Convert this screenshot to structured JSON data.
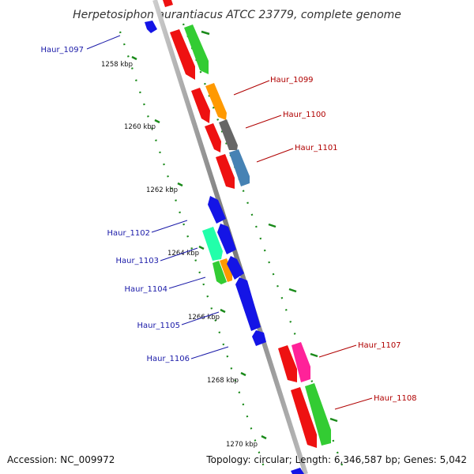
{
  "title": "Herpetosiphon aurantiacus ATCC 23779, complete genome",
  "footer": {
    "accession": "Accession: NC_009972",
    "summary": "Topology: circular; Length: 6,346,587 bp; Genes: 5,042"
  },
  "ticks": [
    "1258 kbp",
    "1260 kbp",
    "1262 kbp",
    "1264 kbp",
    "1266 kbp",
    "1268 kbp",
    "1270 kbp"
  ],
  "genes_reverse": [
    "Haur_1097",
    "Haur_1102",
    "Haur_1103",
    "Haur_1104",
    "Haur_1105",
    "Haur_1106"
  ],
  "genes_forward": [
    "Haur_1099",
    "Haur_1100",
    "Haur_1101",
    "Haur_1107",
    "Haur_1108"
  ],
  "colors": {
    "red": "#ee1111",
    "green": "#33cc33",
    "orange": "#ff9900",
    "gray": "#666666",
    "steelblue": "#4682b4",
    "blue": "#1414e6",
    "aquamarine": "#22ffaa",
    "pink": "#ff2299",
    "backbone": "#888888",
    "dots": "#1a8a1a",
    "label_blue": "#1a1aa8",
    "label_red": "#b00000"
  }
}
